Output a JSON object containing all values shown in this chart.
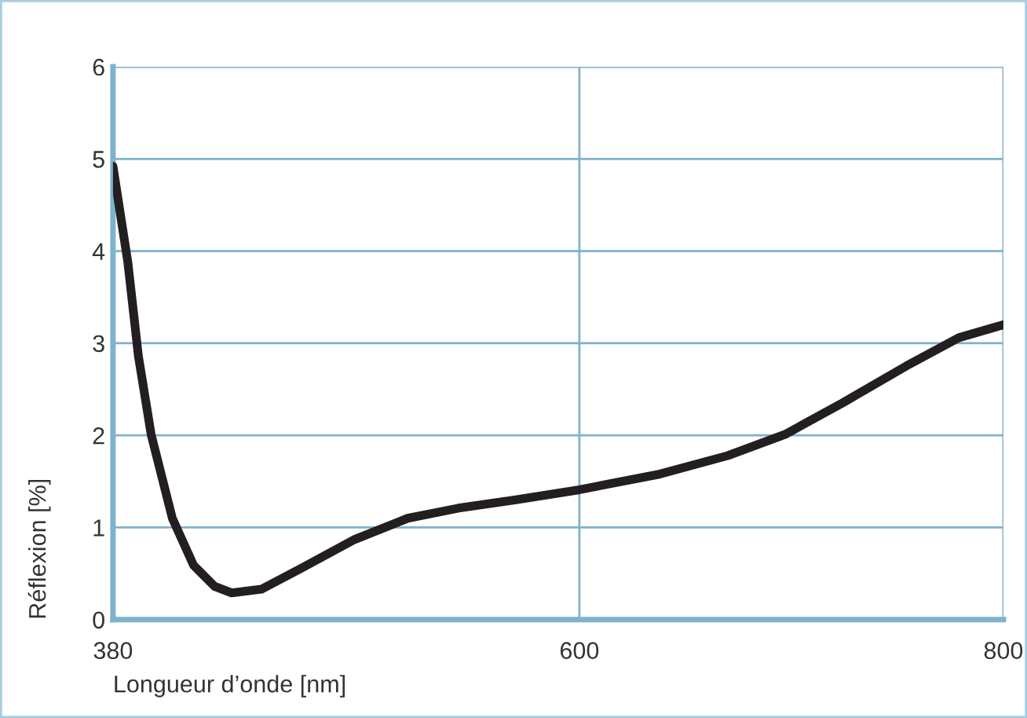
{
  "chart_data": {
    "type": "line",
    "xlabel": "Longueur d’onde [nm]",
    "ylabel": "Réflexion [%]",
    "x": [
      380,
      387,
      392,
      398,
      408,
      418,
      428,
      436,
      450,
      469,
      494,
      519,
      543,
      570,
      600,
      638,
      670,
      697,
      724,
      754,
      779,
      800
    ],
    "series": [
      {
        "color": "#231f20",
        "values": [
          4.92,
          3.88,
          2.86,
          2.01,
          1.1,
          0.59,
          0.36,
          0.29,
          0.33,
          0.56,
          0.87,
          1.1,
          1.21,
          1.3,
          1.41,
          1.58,
          1.78,
          2.01,
          2.35,
          2.75,
          3.06,
          3.2
        ]
      }
    ],
    "xlim": [
      380,
      800
    ],
    "xticks": [
      380,
      600,
      800
    ],
    "ylim": [
      0,
      6
    ],
    "yticks": [
      0,
      1,
      2,
      3,
      4,
      5,
      6
    ],
    "grid": true,
    "line_style": "solid",
    "marker": "none"
  }
}
